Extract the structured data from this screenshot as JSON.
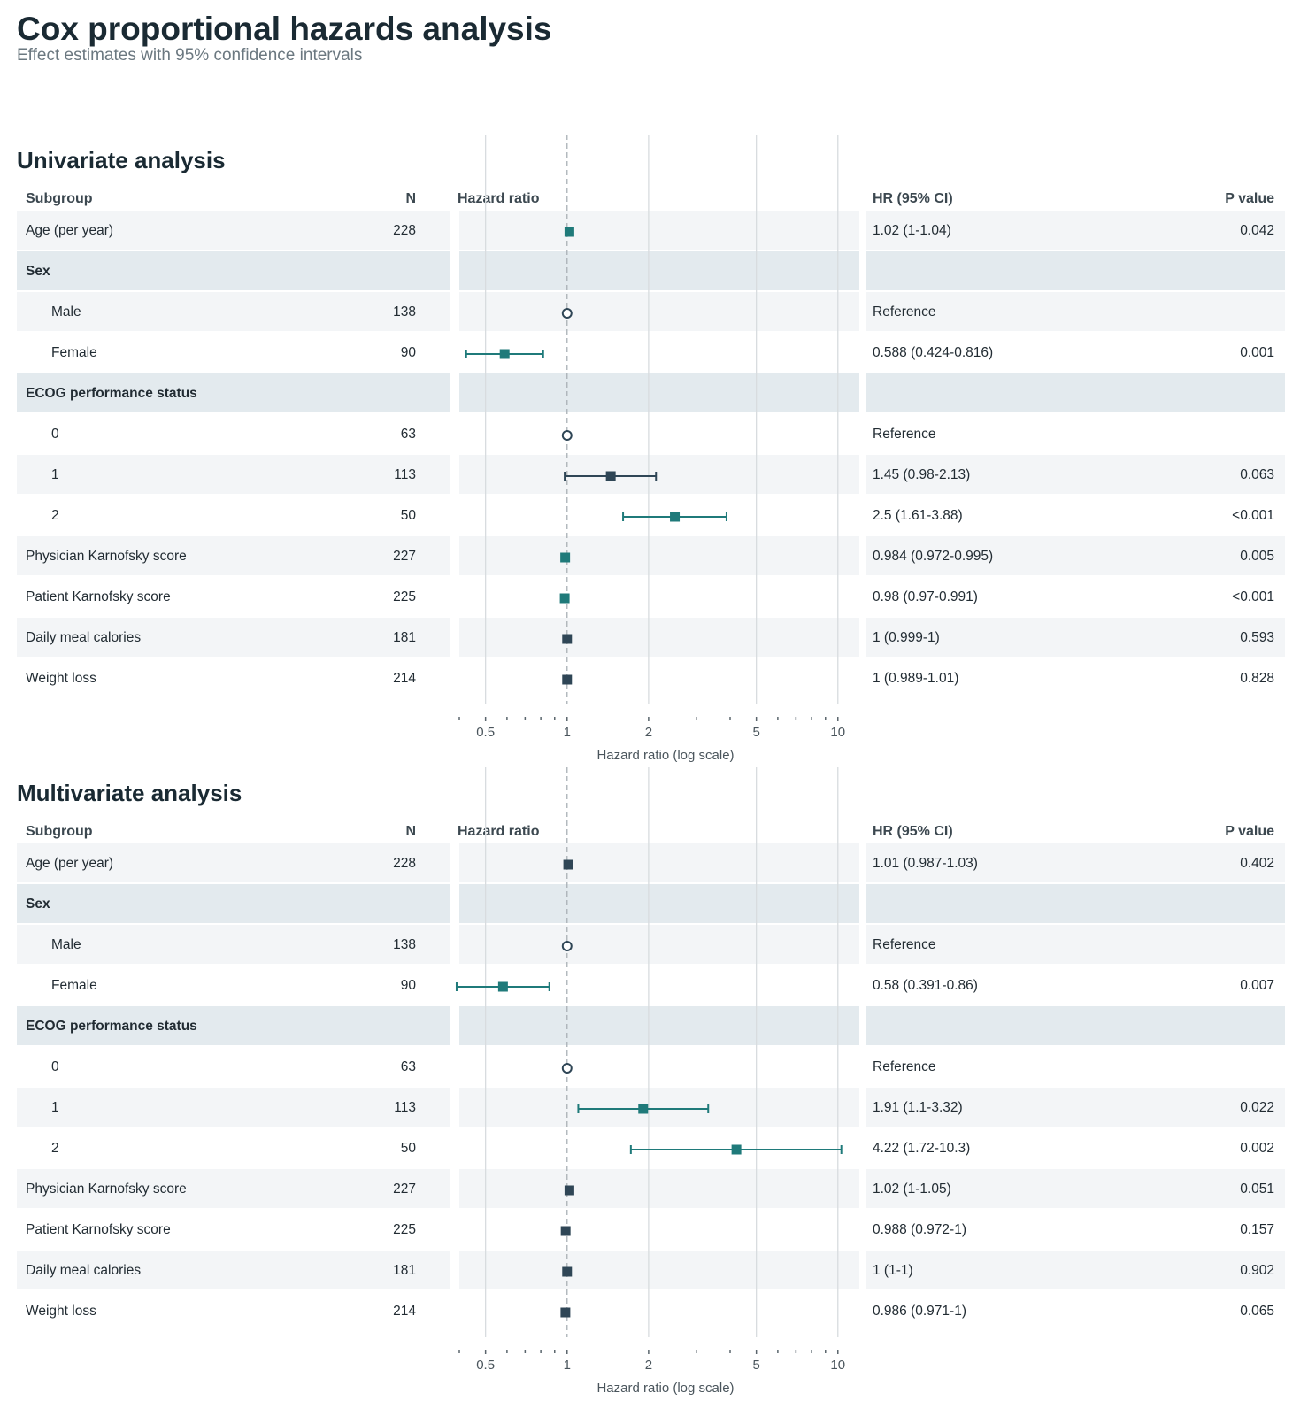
{
  "title": "Cox proportional hazards analysis",
  "subtitle": "Effect estimates with 95% confidence intervals",
  "headers": {
    "subgroup": "Subgroup",
    "n": "N",
    "plot": "Hazard ratio",
    "hrci": "HR (95% CI)",
    "pval": "P value"
  },
  "colors": {
    "significant": "#1f7a7a",
    "nonsignificant": "#2f4656",
    "reference": "#2f4656",
    "stripe": "#f3f5f7",
    "group": "#e3eaee"
  },
  "chart_data": [
    {
      "type": "forest",
      "title": "Univariate analysis",
      "xlabel": "Hazard ratio (log scale)",
      "xscale": "log",
      "xlim": [
        0.4,
        12
      ],
      "reference_line": 1,
      "ticks": [
        "0.5",
        "1",
        "2",
        "5",
        "10"
      ],
      "rows": [
        {
          "label": "Age (per year)",
          "kind": "item",
          "n": "228",
          "hr": 1.02,
          "lo": 1.0,
          "hi": 1.04,
          "ci_text": "1.02 (1-1.04)",
          "p": "0.042",
          "sig": true
        },
        {
          "label": "Sex",
          "kind": "group"
        },
        {
          "label": "Male",
          "kind": "ref",
          "n": "138",
          "hr": 1,
          "ci_text": "Reference",
          "p": ""
        },
        {
          "label": "Female",
          "kind": "sub",
          "n": "90",
          "hr": 0.588,
          "lo": 0.424,
          "hi": 0.816,
          "ci_text": "0.588 (0.424-0.816)",
          "p": "0.001",
          "sig": true
        },
        {
          "label": "ECOG performance status",
          "kind": "group"
        },
        {
          "label": "0",
          "kind": "ref",
          "n": "63",
          "hr": 1,
          "ci_text": "Reference",
          "p": ""
        },
        {
          "label": "1",
          "kind": "sub",
          "n": "113",
          "hr": 1.45,
          "lo": 0.98,
          "hi": 2.13,
          "ci_text": "1.45 (0.98-2.13)",
          "p": "0.063",
          "sig": false
        },
        {
          "label": "2",
          "kind": "sub",
          "n": "50",
          "hr": 2.5,
          "lo": 1.61,
          "hi": 3.88,
          "ci_text": "2.5 (1.61-3.88)",
          "p": "<0.001",
          "sig": true
        },
        {
          "label": "Physician Karnofsky score",
          "kind": "item",
          "n": "227",
          "hr": 0.984,
          "lo": 0.972,
          "hi": 0.995,
          "ci_text": "0.984 (0.972-0.995)",
          "p": "0.005",
          "sig": true
        },
        {
          "label": "Patient Karnofsky score",
          "kind": "item",
          "n": "225",
          "hr": 0.98,
          "lo": 0.97,
          "hi": 0.991,
          "ci_text": "0.98 (0.97-0.991)",
          "p": "<0.001",
          "sig": true
        },
        {
          "label": "Daily meal calories",
          "kind": "item",
          "n": "181",
          "hr": 1.0,
          "lo": 0.999,
          "hi": 1.0,
          "ci_text": "1 (0.999-1)",
          "p": "0.593",
          "sig": false
        },
        {
          "label": "Weight loss",
          "kind": "item",
          "n": "214",
          "hr": 1.0,
          "lo": 0.989,
          "hi": 1.01,
          "ci_text": "1 (0.989-1.01)",
          "p": "0.828",
          "sig": false
        }
      ]
    },
    {
      "type": "forest",
      "title": "Multivariate analysis",
      "xlabel": "Hazard ratio (log scale)",
      "xscale": "log",
      "xlim": [
        0.4,
        12
      ],
      "reference_line": 1,
      "ticks": [
        "0.5",
        "1",
        "2",
        "5",
        "10"
      ],
      "rows": [
        {
          "label": "Age (per year)",
          "kind": "item",
          "n": "228",
          "hr": 1.01,
          "lo": 0.987,
          "hi": 1.03,
          "ci_text": "1.01 (0.987-1.03)",
          "p": "0.402",
          "sig": false
        },
        {
          "label": "Sex",
          "kind": "group"
        },
        {
          "label": "Male",
          "kind": "ref",
          "n": "138",
          "hr": 1,
          "ci_text": "Reference",
          "p": ""
        },
        {
          "label": "Female",
          "kind": "sub",
          "n": "90",
          "hr": 0.58,
          "lo": 0.391,
          "hi": 0.86,
          "ci_text": "0.58 (0.391-0.86)",
          "p": "0.007",
          "sig": true
        },
        {
          "label": "ECOG performance status",
          "kind": "group"
        },
        {
          "label": "0",
          "kind": "ref",
          "n": "63",
          "hr": 1,
          "ci_text": "Reference",
          "p": ""
        },
        {
          "label": "1",
          "kind": "sub",
          "n": "113",
          "hr": 1.91,
          "lo": 1.1,
          "hi": 3.32,
          "ci_text": "1.91 (1.1-3.32)",
          "p": "0.022",
          "sig": true
        },
        {
          "label": "2",
          "kind": "sub",
          "n": "50",
          "hr": 4.22,
          "lo": 1.72,
          "hi": 10.3,
          "ci_text": "4.22 (1.72-10.3)",
          "p": "0.002",
          "sig": true
        },
        {
          "label": "Physician Karnofsky score",
          "kind": "item",
          "n": "227",
          "hr": 1.02,
          "lo": 1.0,
          "hi": 1.05,
          "ci_text": "1.02 (1-1.05)",
          "p": "0.051",
          "sig": false
        },
        {
          "label": "Patient Karnofsky score",
          "kind": "item",
          "n": "225",
          "hr": 0.988,
          "lo": 0.972,
          "hi": 1.0,
          "ci_text": "0.988 (0.972-1)",
          "p": "0.157",
          "sig": false
        },
        {
          "label": "Daily meal calories",
          "kind": "item",
          "n": "181",
          "hr": 1.0,
          "lo": 1.0,
          "hi": 1.0,
          "ci_text": "1 (1-1)",
          "p": "0.902",
          "sig": false
        },
        {
          "label": "Weight loss",
          "kind": "item",
          "n": "214",
          "hr": 0.986,
          "lo": 0.971,
          "hi": 1.0,
          "ci_text": "0.986 (0.971-1)",
          "p": "0.065",
          "sig": false
        }
      ]
    }
  ]
}
